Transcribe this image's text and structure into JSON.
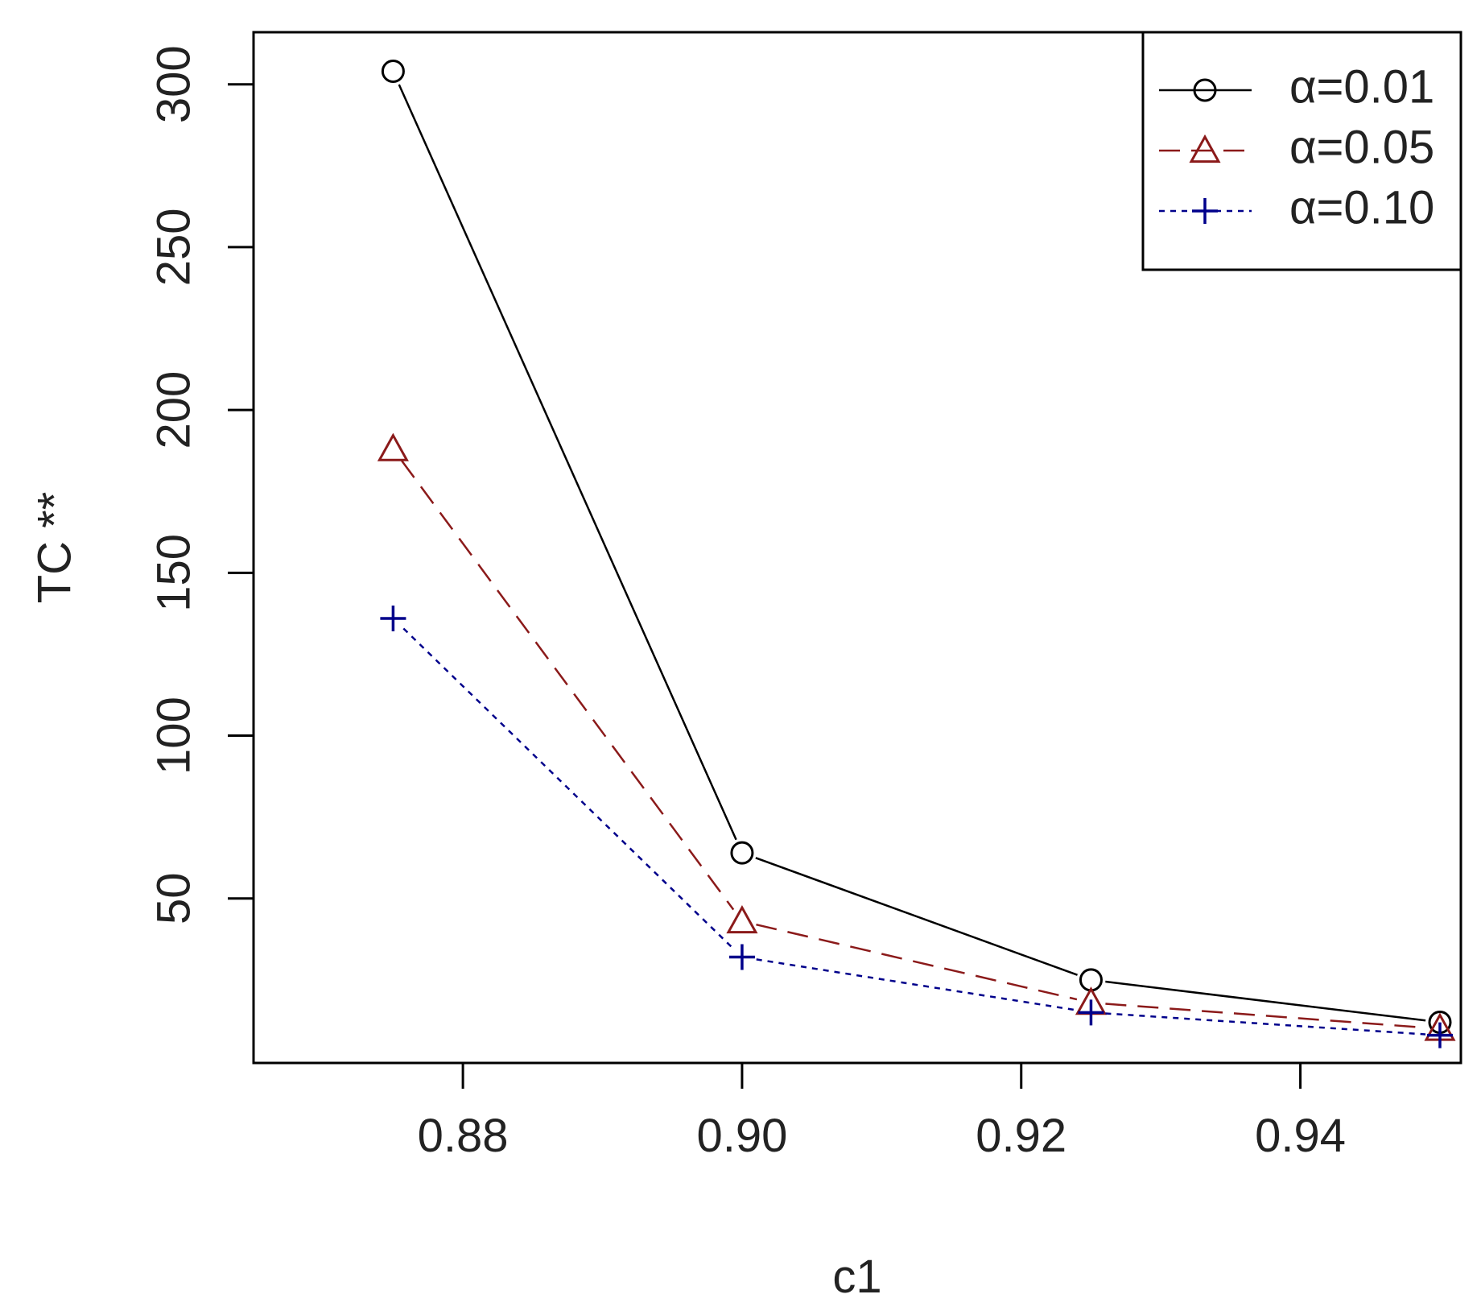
{
  "chart_data": {
    "type": "line",
    "xlabel": "c1",
    "ylabel": "TC **",
    "x": [
      0.875,
      0.9,
      0.925,
      0.95
    ],
    "xlim": [
      0.865,
      0.9515
    ],
    "ylim": [
      -0.5,
      316
    ],
    "x_ticks": [
      {
        "value": 0.88,
        "label": "0.88"
      },
      {
        "value": 0.9,
        "label": "0.90"
      },
      {
        "value": 0.92,
        "label": "0.92"
      },
      {
        "value": 0.94,
        "label": "0.94"
      }
    ],
    "y_ticks": [
      {
        "value": 50,
        "label": "50"
      },
      {
        "value": 100,
        "label": "100"
      },
      {
        "value": 150,
        "label": "150"
      },
      {
        "value": 200,
        "label": "200"
      },
      {
        "value": 250,
        "label": "250"
      },
      {
        "value": 300,
        "label": "300"
      }
    ],
    "series": [
      {
        "name": "α=0.01",
        "values": [
          304,
          64,
          25,
          12
        ],
        "color": "#000000",
        "line_style": "solid",
        "marker": "circle"
      },
      {
        "name": "α=0.05",
        "values": [
          188,
          43,
          18,
          10
        ],
        "color": "#8b1a1a",
        "line_style": "dashed",
        "marker": "triangle"
      },
      {
        "name": "α=0.10",
        "values": [
          136,
          32,
          15,
          8
        ],
        "color": "#00008b",
        "line_style": "dotted",
        "marker": "plus"
      }
    ],
    "legend_position": "top-right",
    "grid": false
  }
}
